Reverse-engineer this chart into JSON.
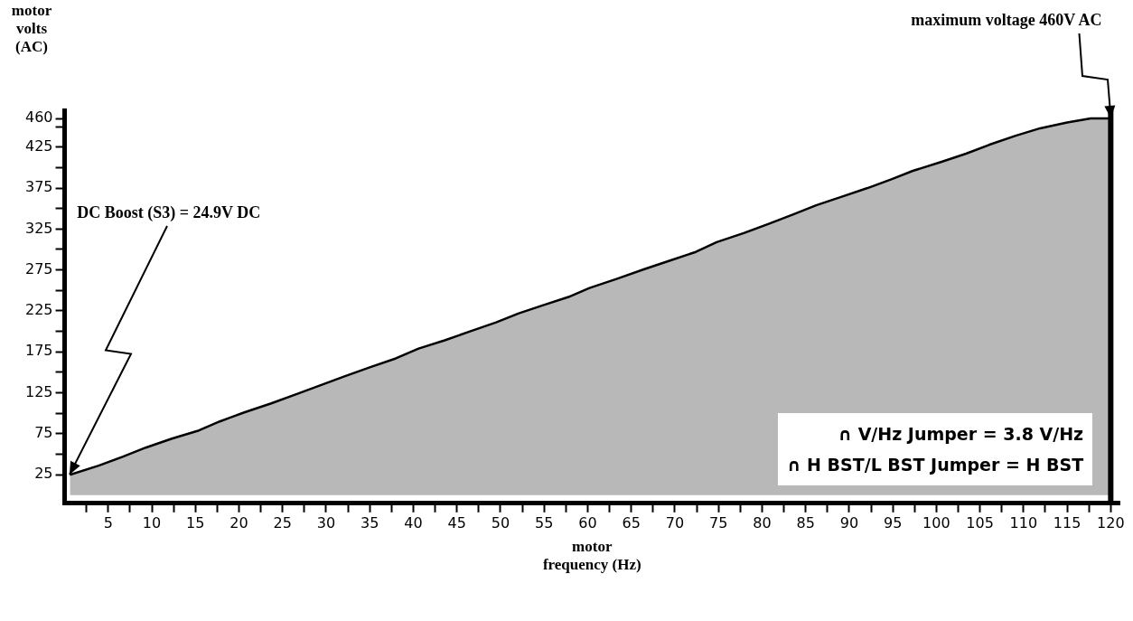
{
  "chart_data": {
    "type": "area",
    "xlabel": "motor frequency (Hz)",
    "ylabel": "motor volts (AC)",
    "series": [
      {
        "color": "#000000",
        "x": [
          0.6,
          3.9,
          6.7,
          9.3,
          12.3,
          15.4,
          17.8,
          20.6,
          23.7,
          26.5,
          29.3,
          32.1,
          35,
          38,
          40.6,
          43.6,
          46.5,
          49.5,
          52.1,
          54.9,
          57.8,
          60.2,
          63.3,
          66.5,
          69.6,
          72.4,
          74.8,
          77.9,
          80.7,
          83.6,
          86.2,
          89.3,
          92.1,
          94.9,
          97.3,
          100.6,
          103.4,
          106.1,
          109.1,
          111.9,
          115,
          117.7,
          120
        ],
        "values": [
          24.9,
          36,
          47,
          58,
          69,
          79,
          90,
          101,
          112,
          123,
          134,
          145,
          156,
          167,
          179,
          189,
          200,
          211,
          222,
          232,
          242,
          253,
          264,
          276,
          287,
          297,
          309,
          320,
          331,
          343,
          354,
          365,
          375,
          386,
          396,
          407,
          417,
          428,
          439,
          448,
          455,
          460,
          460
        ]
      }
    ],
    "xlim": [
      0,
      121
    ],
    "ylim": [
      -10,
      470
    ],
    "xticks": [
      {
        "value": 2.5,
        "label": null
      },
      5,
      {
        "value": 7.5,
        "label": null
      },
      10,
      {
        "value": 12.5,
        "label": null
      },
      15,
      {
        "value": 17.5,
        "label": null
      },
      20,
      {
        "value": 22.5,
        "label": null
      },
      25,
      {
        "value": 27.5,
        "label": null
      },
      30,
      {
        "value": 32.5,
        "label": null
      },
      35,
      {
        "value": 37.5,
        "label": null
      },
      40,
      {
        "value": 42.5,
        "label": null
      },
      45,
      {
        "value": 47.5,
        "label": null
      },
      50,
      {
        "value": 52.5,
        "label": null
      },
      55,
      {
        "value": 57.5,
        "label": null
      },
      60,
      {
        "value": 62.5,
        "label": null
      },
      65,
      {
        "value": 67.5,
        "label": null
      },
      70,
      {
        "value": 72.5,
        "label": null
      },
      75,
      {
        "value": 77.5,
        "label": null
      },
      80,
      {
        "value": 82.5,
        "label": null
      },
      85,
      {
        "value": 87.5,
        "label": null
      },
      90,
      {
        "value": 92.5,
        "label": null
      },
      95,
      {
        "value": 97.5,
        "label": null
      },
      100,
      {
        "value": 102.5,
        "label": null
      },
      105,
      {
        "value": 107.5,
        "label": null
      },
      110,
      {
        "value": 112.5,
        "label": null
      },
      115,
      {
        "value": 117.5,
        "label": null
      },
      120
    ],
    "yticks": [
      25,
      {
        "value": 50,
        "label": null
      },
      75,
      {
        "value": 100,
        "label": null
      },
      125,
      {
        "value": 150,
        "label": null
      },
      175,
      {
        "value": 200,
        "label": null
      },
      225,
      {
        "value": 250,
        "label": null
      },
      275,
      {
        "value": 300,
        "label": null
      },
      325,
      {
        "value": 350,
        "label": null
      },
      375,
      {
        "value": 400,
        "label": null
      },
      425,
      {
        "value": 450,
        "label": null
      },
      460
    ],
    "ref_lines": [
      {
        "axis": "x",
        "value": 120,
        "color": "#000000"
      }
    ],
    "annotations": [
      {
        "text": "DC Boost (S3) = 24.9V DC",
        "x": 0.6,
        "y": 24.9
      },
      {
        "text": "maximum voltage 460V AC",
        "x": 120,
        "y": 460
      },
      "∩ V/Hz Jumper = 3.8 V/Hz",
      "∩ H BST/L BST Jumper = H BST"
    ]
  }
}
